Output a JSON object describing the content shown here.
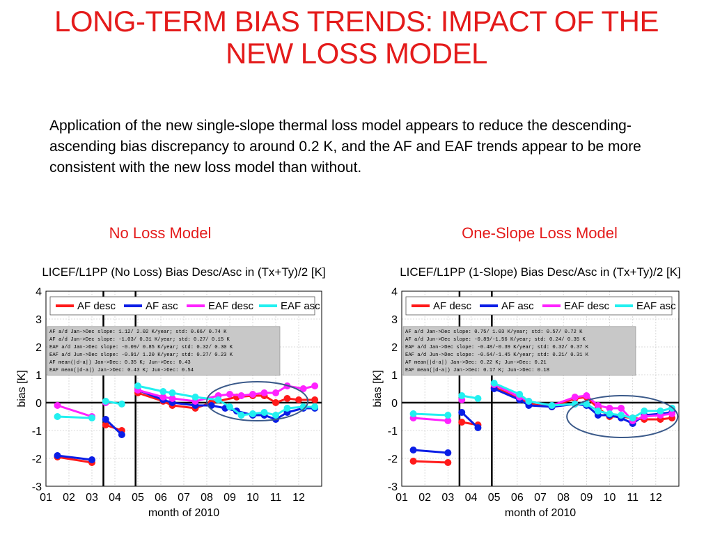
{
  "title_line1": "LONG-TERM BIAS TRENDS: IMPACT OF THE",
  "title_line2": "NEW LOSS MODEL",
  "description": "Application of the new single-slope thermal loss model appears to reduce the descending-ascending bias discrepancy to around 0.2 K, and the AF and EAF trends appear to be more consistent with the new loss model than without.",
  "left_subtitle": "No Loss Model",
  "right_subtitle": "One-Slope Loss Model",
  "colors": {
    "af_desc": "#ff1a1a",
    "af_asc": "#0a1ee6",
    "eaf_desc": "#ff22ff",
    "eaf_asc": "#22f0f0",
    "ellipse": "#3b5a8a",
    "title_red": "#e41b1b"
  },
  "chart_data": [
    {
      "type": "line",
      "title": "LICEF/L1PP (No Loss) Bias Desc/Asc in (Tx+Ty)/2 [K]",
      "xlabel": "month of 2010",
      "ylabel": "bias [K]",
      "xlim": [
        1,
        13
      ],
      "ylim": [
        -3,
        4
      ],
      "xticks": [
        "01",
        "02",
        "03",
        "04",
        "05",
        "06",
        "07",
        "08",
        "09",
        "10",
        "11",
        "12"
      ],
      "yticks": [
        "-3",
        "-2",
        "-1",
        "0",
        "1",
        "2",
        "3",
        "4"
      ],
      "grid": true,
      "legend_position": "top",
      "vlines": [
        3.5,
        4.9
      ],
      "highlight_ellipse": {
        "cx": 10.2,
        "cy": 0.05,
        "rx": 2.2,
        "ry": 0.7
      },
      "stats": [
        "AF  a/d Jan->Dec slope:  1.12/ 2.02 K/year; std:  0.66/ 0.74 K",
        "AF  a/d Jun->Dec slope: -1.03/ 0.31 K/year; std:  0.27/ 0.15 K",
        "EAF a/d Jan->Dec slope: -0.09/ 0.85 K/year; std:  0.32/ 0.30 K",
        "EAF a/d Jun->Dec slope: -0.91/ 1.20 K/year; std:  0.27/ 0.23 K",
        "AF  mean(|d-a|) Jan->Dec:  0.35 K; Jun->Dec:  0.43",
        "EAF mean(|d-a|) Jan->Dec:  0.43 K; Jun->Dec:  0.54"
      ],
      "series": [
        {
          "name": "AF desc",
          "color_key": "af_desc",
          "segments": [
            [
              [
                1.5,
                -1.95
              ],
              [
                3,
                -2.15
              ]
            ],
            [
              [
                3.6,
                -0.8
              ],
              [
                4.3,
                -1.0
              ]
            ],
            [
              [
                5,
                0.35
              ],
              [
                6.1,
                0.05
              ],
              [
                6.5,
                -0.1
              ],
              [
                7.5,
                -0.2
              ],
              [
                8.2,
                0.0
              ],
              [
                9.3,
                0.2
              ],
              [
                10,
                0.25
              ],
              [
                10.5,
                0.25
              ],
              [
                11,
                0.0
              ],
              [
                11.5,
                0.15
              ],
              [
                12,
                0.1
              ],
              [
                12.7,
                0.1
              ]
            ]
          ]
        },
        {
          "name": "AF asc",
          "color_key": "af_asc",
          "segments": [
            [
              [
                1.5,
                -1.9
              ],
              [
                3,
                -2.05
              ]
            ],
            [
              [
                3.6,
                -0.6
              ],
              [
                4.3,
                -1.15
              ]
            ],
            [
              [
                5,
                0.45
              ],
              [
                6.1,
                0.1
              ],
              [
                6.5,
                0.0
              ],
              [
                7.5,
                -0.1
              ],
              [
                8.2,
                -0.1
              ],
              [
                8.8,
                -0.2
              ],
              [
                9.3,
                -0.3
              ],
              [
                10,
                -0.45
              ],
              [
                10.5,
                -0.45
              ],
              [
                11,
                -0.6
              ],
              [
                11.5,
                -0.35
              ],
              [
                12.2,
                -0.2
              ],
              [
                12.7,
                -0.2
              ]
            ]
          ]
        },
        {
          "name": "EAF desc",
          "color_key": "eaf_desc",
          "segments": [
            [
              [
                1.5,
                -0.1
              ],
              [
                3,
                -0.5
              ]
            ],
            [
              [
                3.6,
                0.0
              ]
            ],
            [
              [
                5,
                0.45
              ],
              [
                6.1,
                0.2
              ],
              [
                6.5,
                0.15
              ],
              [
                7.5,
                0.05
              ],
              [
                8.5,
                0.25
              ],
              [
                9,
                0.3
              ],
              [
                9.5,
                0.25
              ],
              [
                10,
                0.3
              ],
              [
                10.5,
                0.35
              ],
              [
                11,
                0.35
              ],
              [
                11.5,
                0.6
              ],
              [
                12.2,
                0.5
              ],
              [
                12.7,
                0.6
              ]
            ]
          ]
        },
        {
          "name": "EAF asc",
          "color_key": "eaf_asc",
          "segments": [
            [
              [
                1.5,
                -0.5
              ],
              [
                3,
                -0.55
              ]
            ],
            [
              [
                3.6,
                0.05
              ],
              [
                4.3,
                -0.05
              ]
            ],
            [
              [
                5,
                0.6
              ],
              [
                6.1,
                0.4
              ],
              [
                6.5,
                0.35
              ],
              [
                7.5,
                0.2
              ],
              [
                8.5,
                0.1
              ],
              [
                9,
                -0.15
              ],
              [
                9.5,
                -0.45
              ],
              [
                10,
                -0.4
              ],
              [
                10.5,
                -0.35
              ],
              [
                11,
                -0.45
              ],
              [
                11.5,
                -0.2
              ],
              [
                12.2,
                -0.15
              ],
              [
                12.7,
                -0.15
              ]
            ]
          ]
        }
      ]
    },
    {
      "type": "line",
      "title": "LICEF/L1PP (1-Slope) Bias Desc/Asc in (Tx+Ty)/2 [K]",
      "xlabel": "month of 2010",
      "ylabel": "bias [K]",
      "xlim": [
        1,
        13
      ],
      "ylim": [
        -3,
        4
      ],
      "xticks": [
        "01",
        "02",
        "03",
        "04",
        "05",
        "06",
        "07",
        "08",
        "09",
        "10",
        "11",
        "12"
      ],
      "yticks": [
        "-3",
        "-2",
        "-1",
        "0",
        "1",
        "2",
        "3",
        "4"
      ],
      "grid": true,
      "legend_position": "top",
      "vlines": [
        3.5,
        4.9
      ],
      "highlight_ellipse": {
        "cx": 10.55,
        "cy": -0.5,
        "rx": 2.4,
        "ry": 0.75
      },
      "stats": [
        "AF  a/d Jan->Dec slope:  0.75/ 1.03 K/year; std:  0.57/ 0.72 K",
        "AF  a/d Jun->Dec slope: -0.89/-1.56 K/year; std:  0.24/ 0.35 K",
        "EAF a/d Jan->Dec slope: -0.48/-0.39 K/year; std:  0.32/ 0.37 K",
        "EAF a/d Jun->Dec slope: -0.64/-1.45 K/year; std:  0.21/ 0.31 K",
        "AF  mean(|d-a|) Jan->Dec:  0.22 K; Jun->Dec:  0.21",
        "EAF mean(|d-a|) Jan->Dec:  0.17 K; Jun->Dec:  0.18"
      ],
      "series": [
        {
          "name": "AF desc",
          "color_key": "af_desc",
          "segments": [
            [
              [
                1.5,
                -2.1
              ],
              [
                3,
                -2.15
              ]
            ],
            [
              [
                3.6,
                -0.7
              ],
              [
                4.3,
                -0.8
              ]
            ],
            [
              [
                5,
                0.55
              ],
              [
                6.1,
                0.15
              ],
              [
                6.5,
                -0.05
              ],
              [
                7.5,
                -0.15
              ],
              [
                8.5,
                0.15
              ],
              [
                9,
                0.2
              ],
              [
                9.5,
                -0.2
              ],
              [
                10,
                -0.5
              ],
              [
                10.5,
                -0.5
              ],
              [
                11,
                -0.55
              ],
              [
                11.5,
                -0.6
              ],
              [
                12.2,
                -0.6
              ],
              [
                12.7,
                -0.55
              ]
            ]
          ]
        },
        {
          "name": "AF asc",
          "color_key": "af_asc",
          "segments": [
            [
              [
                1.5,
                -1.7
              ],
              [
                3,
                -1.8
              ]
            ],
            [
              [
                3.6,
                -0.35
              ],
              [
                4.3,
                -0.9
              ]
            ],
            [
              [
                5,
                0.5
              ],
              [
                6.1,
                0.1
              ],
              [
                6.5,
                -0.1
              ],
              [
                7.5,
                -0.15
              ],
              [
                8.5,
                -0.05
              ],
              [
                9,
                -0.1
              ],
              [
                9.5,
                -0.45
              ],
              [
                10,
                -0.45
              ],
              [
                10.5,
                -0.55
              ],
              [
                11,
                -0.75
              ],
              [
                11.5,
                -0.45
              ],
              [
                12.2,
                -0.4
              ],
              [
                12.7,
                -0.35
              ]
            ]
          ]
        },
        {
          "name": "EAF desc",
          "color_key": "eaf_desc",
          "segments": [
            [
              [
                1.5,
                -0.55
              ],
              [
                3,
                -0.65
              ]
            ],
            [
              [
                3.6,
                0.1
              ]
            ],
            [
              [
                5,
                0.65
              ],
              [
                6.1,
                0.2
              ],
              [
                6.5,
                0.05
              ],
              [
                7.5,
                -0.1
              ],
              [
                8.5,
                0.2
              ],
              [
                9,
                0.25
              ],
              [
                9.5,
                -0.1
              ],
              [
                10,
                -0.2
              ],
              [
                10.5,
                -0.2
              ],
              [
                11,
                -0.65
              ],
              [
                11.5,
                -0.5
              ],
              [
                12.2,
                -0.45
              ],
              [
                12.7,
                -0.4
              ]
            ]
          ]
        },
        {
          "name": "EAF asc",
          "color_key": "eaf_asc",
          "segments": [
            [
              [
                1.5,
                -0.4
              ],
              [
                3,
                -0.45
              ]
            ],
            [
              [
                3.6,
                0.25
              ],
              [
                4.3,
                0.15
              ]
            ],
            [
              [
                5,
                0.7
              ],
              [
                6.1,
                0.3
              ],
              [
                6.5,
                0.05
              ],
              [
                7.5,
                -0.1
              ],
              [
                8.5,
                -0.05
              ],
              [
                9,
                -0.05
              ],
              [
                9.5,
                -0.3
              ],
              [
                10,
                -0.4
              ],
              [
                10.5,
                -0.45
              ],
              [
                11,
                -0.55
              ],
              [
                11.5,
                -0.3
              ],
              [
                12.2,
                -0.3
              ],
              [
                12.7,
                -0.2
              ]
            ]
          ]
        }
      ]
    }
  ]
}
